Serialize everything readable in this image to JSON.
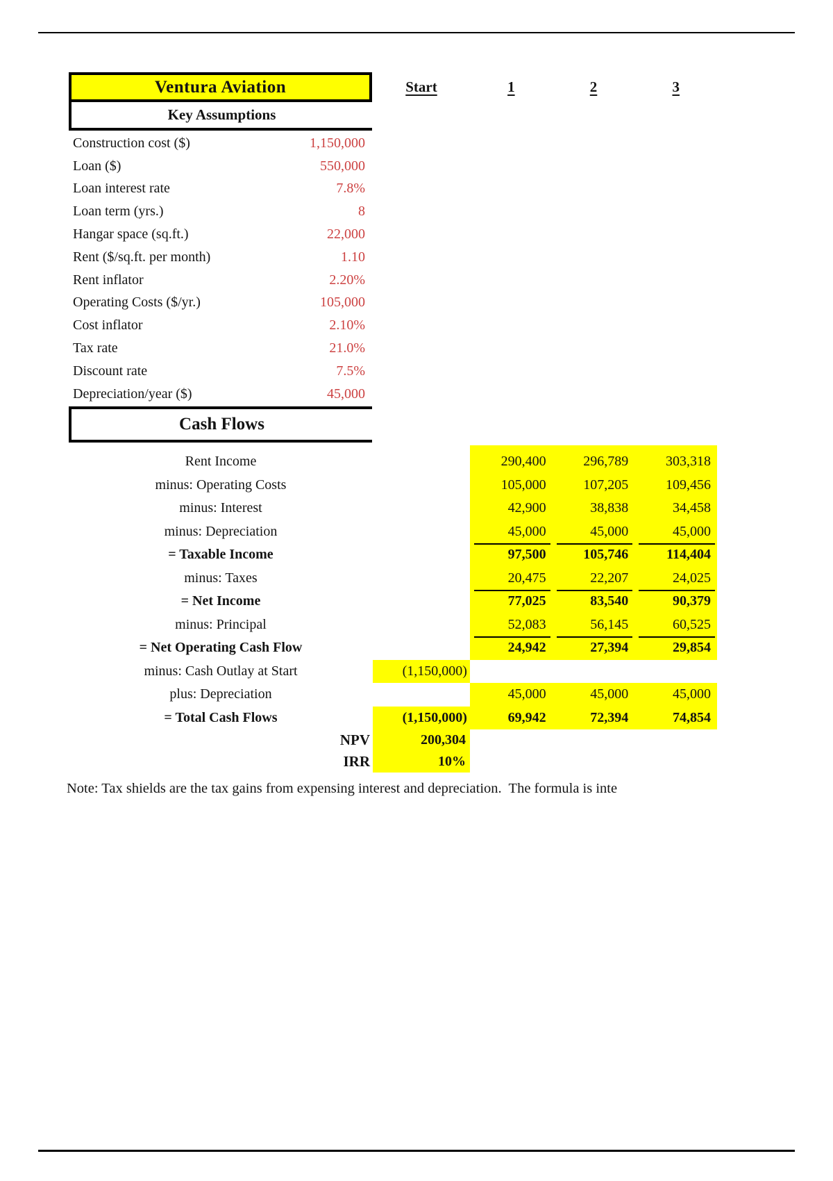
{
  "header": {
    "title": "Ventura Aviation",
    "assumptions_title": "Key Assumptions",
    "cashflows_title": "Cash Flows"
  },
  "columns": {
    "start": "Start",
    "years": [
      "1",
      "2",
      "3"
    ]
  },
  "assumptions": [
    {
      "label": "Construction cost ($)",
      "value": "1,150,000"
    },
    {
      "label": "Loan ($)",
      "value": "550,000"
    },
    {
      "label": "Loan interest rate",
      "value": "7.8%"
    },
    {
      "label": "Loan term (yrs.)",
      "value": "8"
    },
    {
      "label": "Hangar space (sq.ft.)",
      "value": "22,000"
    },
    {
      "label": "Rent ($/sq.ft. per month)",
      "value": "1.10"
    },
    {
      "label": "Rent inflator",
      "value": "2.20%"
    },
    {
      "label": "Operating Costs ($/yr.)",
      "value": "105,000"
    },
    {
      "label": "Cost inflator",
      "value": "2.10%"
    },
    {
      "label": "Tax rate",
      "value": "21.0%"
    },
    {
      "label": "Discount rate",
      "value": "7.5%"
    },
    {
      "label": "Depreciation/year ($)",
      "value": "45,000"
    }
  ],
  "cashflows": [
    {
      "label": "Rent Income",
      "start": "",
      "years": [
        "290,400",
        "296,789",
        "303,318"
      ],
      "bold": false,
      "underline": false,
      "hl_start": false,
      "hl_years": false
    },
    {
      "label": "minus: Operating Costs",
      "start": "",
      "years": [
        "105,000",
        "107,205",
        "109,456"
      ],
      "bold": false,
      "underline": false,
      "hl_start": false,
      "hl_years": false
    },
    {
      "label": "minus: Interest",
      "start": "",
      "years": [
        "42,900",
        "38,838",
        "34,458"
      ],
      "bold": false,
      "underline": false,
      "hl_start": false,
      "hl_years": false
    },
    {
      "label": "minus: Depreciation",
      "start": "",
      "years": [
        "45,000",
        "45,000",
        "45,000"
      ],
      "bold": false,
      "underline": true,
      "hl_start": false,
      "hl_years": false
    },
    {
      "label": "= Taxable Income",
      "start": "",
      "years": [
        "97,500",
        "105,746",
        "114,404"
      ],
      "bold": true,
      "underline": false,
      "hl_start": false,
      "hl_years": false
    },
    {
      "label": "minus: Taxes",
      "start": "",
      "years": [
        "20,475",
        "22,207",
        "24,025"
      ],
      "bold": false,
      "underline": true,
      "hl_start": false,
      "hl_years": false
    },
    {
      "label": "= Net Income",
      "start": "",
      "years": [
        "77,025",
        "83,540",
        "90,379"
      ],
      "bold": true,
      "underline": false,
      "hl_start": false,
      "hl_years": false
    },
    {
      "label": "minus: Principal",
      "start": "",
      "years": [
        "52,083",
        "56,145",
        "60,525"
      ],
      "bold": false,
      "underline": true,
      "hl_start": false,
      "hl_years": false
    },
    {
      "label": "= Net Operating Cash Flow",
      "start": "",
      "years": [
        "24,942",
        "27,394",
        "29,854"
      ],
      "bold": true,
      "underline": false,
      "hl_start": false,
      "hl_years": false
    },
    {
      "label": "minus: Cash Outlay at Start",
      "start": "(1,150,000)",
      "years": [
        "",
        "",
        ""
      ],
      "bold": false,
      "underline": false,
      "hl_start": true,
      "hl_years": false
    },
    {
      "label": "plus: Depreciation",
      "start": "",
      "years": [
        "45,000",
        "45,000",
        "45,000"
      ],
      "bold": false,
      "underline": false,
      "hl_start": false,
      "hl_years": true
    },
    {
      "label": "= Total Cash Flows",
      "start": "(1,150,000)",
      "years": [
        "69,942",
        "72,394",
        "74,854"
      ],
      "bold": true,
      "underline": false,
      "hl_start": true,
      "hl_years": true
    }
  ],
  "summary": [
    {
      "label": "NPV",
      "value": "200,304"
    },
    {
      "label": "IRR",
      "value": "10%"
    }
  ],
  "note": "Note: Tax shields are the tax gains from expensing interest and depreciation.  The formula is inte",
  "colors": {
    "highlight": "#ffff00",
    "assumption_value": "#cc4141"
  }
}
